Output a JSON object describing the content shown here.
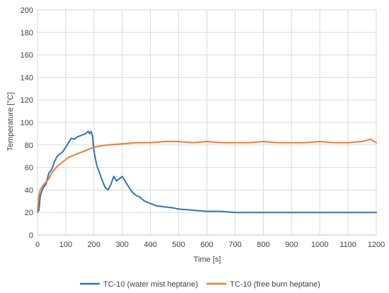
{
  "chart_data": {
    "type": "line",
    "title": "",
    "xlabel": "Time [s]",
    "ylabel": "Temperature [°C]",
    "xlim": [
      0,
      1200
    ],
    "ylim": [
      0,
      200
    ],
    "xticks": [
      0,
      100,
      200,
      300,
      400,
      500,
      600,
      700,
      800,
      900,
      1000,
      1100,
      1200
    ],
    "yticks": [
      0,
      20,
      40,
      60,
      80,
      100,
      120,
      140,
      160,
      180,
      200
    ],
    "grid": true,
    "legend_position": "bottom",
    "series": [
      {
        "name": "TC-10 (water mist heptane)",
        "color": "#2E75B6",
        "x": [
          0,
          5,
          10,
          20,
          30,
          40,
          50,
          60,
          70,
          80,
          90,
          100,
          110,
          120,
          130,
          140,
          150,
          160,
          170,
          180,
          185,
          190,
          195,
          200,
          205,
          210,
          220,
          230,
          240,
          250,
          260,
          270,
          280,
          290,
          300,
          310,
          320,
          330,
          340,
          350,
          360,
          380,
          400,
          420,
          450,
          480,
          500,
          550,
          600,
          650,
          700,
          800,
          900,
          1000,
          1100,
          1200
        ],
        "y": [
          20,
          22,
          35,
          42,
          45,
          55,
          58,
          65,
          70,
          72,
          74,
          78,
          82,
          86,
          85,
          87,
          88,
          89,
          90,
          92,
          90,
          92,
          88,
          75,
          68,
          62,
          55,
          48,
          42,
          40,
          45,
          52,
          48,
          50,
          52,
          48,
          44,
          40,
          37,
          35,
          34,
          30,
          28,
          26,
          25,
          24,
          23,
          22,
          21,
          21,
          20,
          20,
          20,
          20,
          20,
          20
        ]
      },
      {
        "name": "TC-10 (free burn heptane)",
        "color": "#ED7D31",
        "x": [
          0,
          5,
          10,
          20,
          30,
          40,
          50,
          60,
          70,
          80,
          90,
          100,
          110,
          120,
          130,
          140,
          150,
          160,
          170,
          180,
          190,
          200,
          220,
          250,
          300,
          350,
          400,
          450,
          500,
          550,
          600,
          650,
          700,
          750,
          800,
          850,
          900,
          950,
          1000,
          1050,
          1100,
          1150,
          1180,
          1200
        ],
        "y": [
          20,
          35,
          40,
          44,
          47,
          50,
          55,
          58,
          61,
          63,
          65,
          67,
          69,
          70,
          71,
          72,
          73,
          74,
          75,
          76,
          77,
          78,
          79,
          80,
          81,
          82,
          82,
          83,
          83,
          82,
          83,
          82,
          82,
          82,
          83,
          82,
          82,
          82,
          83,
          82,
          82,
          83,
          85,
          82
        ]
      }
    ]
  }
}
